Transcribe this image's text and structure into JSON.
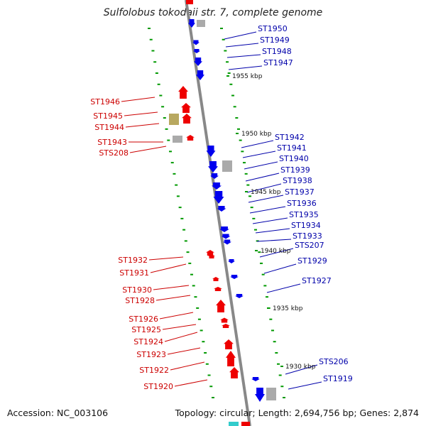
{
  "title": "Sulfolobus tokodaii str. 7, complete genome",
  "footer": {
    "accession": "Accession: NC_003106",
    "summary": "Topology: circular; Length: 2,694,756 bp; Genes: 2,874"
  },
  "colors": {
    "plus": "#0000ee",
    "minus": "#ee0000",
    "other": "#aaaaaa",
    "olive": "#b8a860",
    "tick": "#009900",
    "backbone": "#888888",
    "label_plus": "#0000aa",
    "label_minus": "#cc0000"
  },
  "scale_marks": [
    "1955 kbp",
    "1950 kbp",
    "1945 kbp",
    "1940 kbp",
    "1935 kbp",
    "1930 kbp"
  ],
  "genes_plus": [
    "ST1950",
    "ST1949",
    "ST1948",
    "ST1947",
    "ST1942",
    "ST1941",
    "ST1940",
    "ST1939",
    "ST1938",
    "ST1937",
    "ST1936",
    "ST1935",
    "ST1934",
    "ST1933",
    "STS207",
    "ST1929",
    "ST1927",
    "STS206",
    "ST1919"
  ],
  "genes_minus": [
    "ST1946",
    "ST1945",
    "ST1944",
    "ST1943",
    "STS208",
    "ST1932",
    "ST1931",
    "ST1930",
    "ST1928",
    "ST1926",
    "ST1925",
    "ST1924",
    "ST1923",
    "ST1922",
    "ST1920"
  ]
}
